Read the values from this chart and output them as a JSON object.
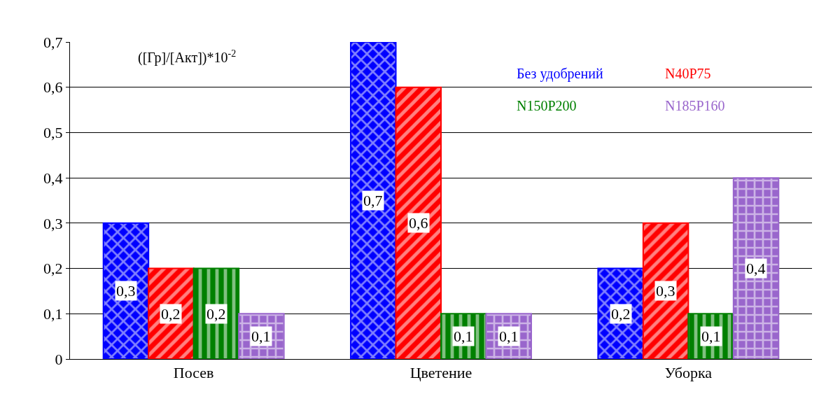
{
  "chart_data": {
    "type": "bar",
    "categories": [
      "Посев",
      "Цветение",
      "Уборка"
    ],
    "series": [
      {
        "name": "Без удобрений",
        "color": "#0000ff",
        "values": [
          0.3,
          0.7,
          0.2
        ],
        "value_labels": [
          "0,3",
          "0,7",
          "0,2"
        ]
      },
      {
        "name": "N40P75",
        "color": "#ff0000",
        "values": [
          0.2,
          0.6,
          0.3
        ],
        "value_labels": [
          "0,2",
          "0,6",
          "0,3"
        ]
      },
      {
        "name": "N150P200",
        "color": "#008000",
        "values": [
          0.2,
          0.1,
          0.1
        ],
        "value_labels": [
          "0,2",
          "0,1",
          "0,1"
        ]
      },
      {
        "name": "N185P160",
        "color": "#9966cc",
        "values": [
          0.1,
          0.1,
          0.4
        ],
        "value_labels": [
          "0,1",
          "0,1",
          "0,4"
        ]
      }
    ],
    "ylim": [
      0,
      0.7
    ],
    "yticks": [
      0,
      {
        "value": 0.1,
        "label": "0,1"
      },
      {
        "value": 0.2,
        "label": "0,2"
      },
      {
        "value": 0.3,
        "label": "0,3"
      },
      {
        "value": 0.4,
        "label": "0,4"
      },
      {
        "value": 0.5,
        "label": "0,5"
      },
      {
        "value": 0.6,
        "label": "0,6"
      },
      {
        "value": 0.7,
        "label": "0,7"
      }
    ],
    "grid": "y",
    "legend": "top right",
    "annotations": [
      "([Гр]/[Акт])*10$^{-2}$"
    ]
  }
}
